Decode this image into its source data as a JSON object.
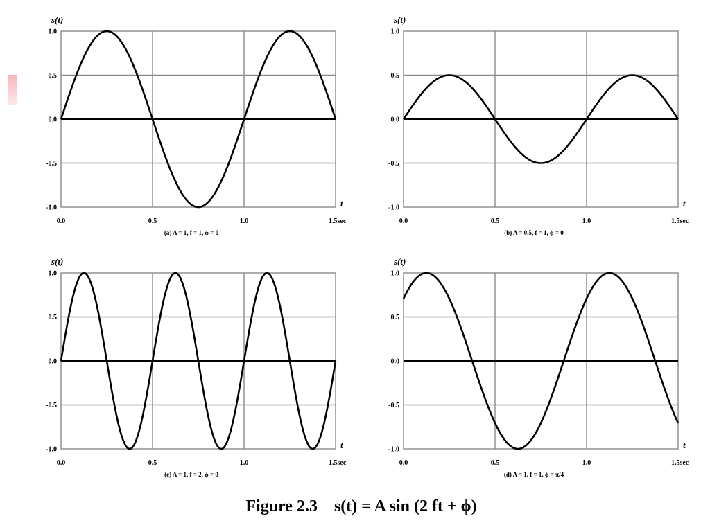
{
  "figure_label": "Figure 2.3",
  "figure_formula": "s(t) = A sin (2  ft + ϕ)",
  "chart_data": [
    {
      "type": "line",
      "caption": "(a) A = 1, f = 1, ϕ = 0",
      "ylabel": "s(t)",
      "xlabel": "t",
      "xlim": [
        0,
        1.5
      ],
      "ylim": [
        -1,
        1
      ],
      "x_ticks": [
        "0.0",
        "0.5",
        "1.0",
        "1.5sec"
      ],
      "y_ticks": [
        "1.0",
        "0.5",
        "0.0",
        "-0.5",
        "-1.0"
      ],
      "grid": true,
      "A": 1,
      "f": 1,
      "phi": 0
    },
    {
      "type": "line",
      "caption": "(b) A = 0.5, f = 1, ϕ = 0",
      "ylabel": "s(t)",
      "xlabel": "t",
      "xlim": [
        0,
        1.5
      ],
      "ylim": [
        -1,
        1
      ],
      "x_ticks": [
        "0.0",
        "0.5",
        "1.0",
        "1.5sec"
      ],
      "y_ticks": [
        "1.0",
        "0.5",
        "0.0",
        "-0.5",
        "-1.0"
      ],
      "grid": true,
      "A": 0.5,
      "f": 1,
      "phi": 0
    },
    {
      "type": "line",
      "caption": "(c) A = 1, f = 2, ϕ = 0",
      "ylabel": "s(t)",
      "xlabel": "t",
      "xlim": [
        0,
        1.5
      ],
      "ylim": [
        -1,
        1
      ],
      "x_ticks": [
        "0.0",
        "0.5",
        "1.0",
        "1.5sec"
      ],
      "y_ticks": [
        "1.0",
        "0.5",
        "0.0",
        "-0.5",
        "-1.0"
      ],
      "grid": true,
      "A": 1,
      "f": 2,
      "phi": 0
    },
    {
      "type": "line",
      "caption": "(d) A = 1, f = 1, ϕ = π/4",
      "ylabel": "s(t)",
      "xlabel": "t",
      "xlim": [
        0,
        1.5
      ],
      "ylim": [
        -1,
        1
      ],
      "x_ticks": [
        "0.0",
        "0.5",
        "1.0",
        "1.5sec"
      ],
      "y_ticks": [
        "1.0",
        "0.5",
        "0.0",
        "-0.5",
        "-1.0"
      ],
      "grid": true,
      "A": 1,
      "f": 1,
      "phi": 0.7854
    }
  ]
}
